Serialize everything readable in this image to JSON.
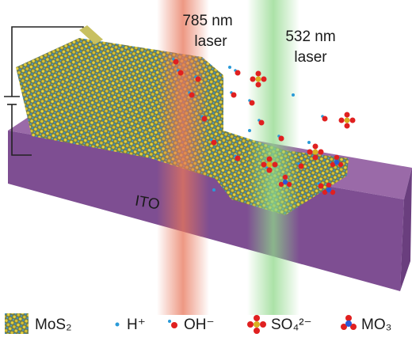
{
  "lasers": [
    {
      "lines": [
        "785 nm",
        "laser"
      ]
    },
    {
      "lines": [
        "532 nm",
        "laser"
      ]
    }
  ],
  "substrate": {
    "label": "ITO"
  },
  "legend": [
    {
      "label": "MoS₂"
    },
    {
      "label": "H⁺"
    },
    {
      "label": "OH⁻"
    },
    {
      "label": "SO₄²⁻"
    },
    {
      "label": "MO₃"
    }
  ]
}
